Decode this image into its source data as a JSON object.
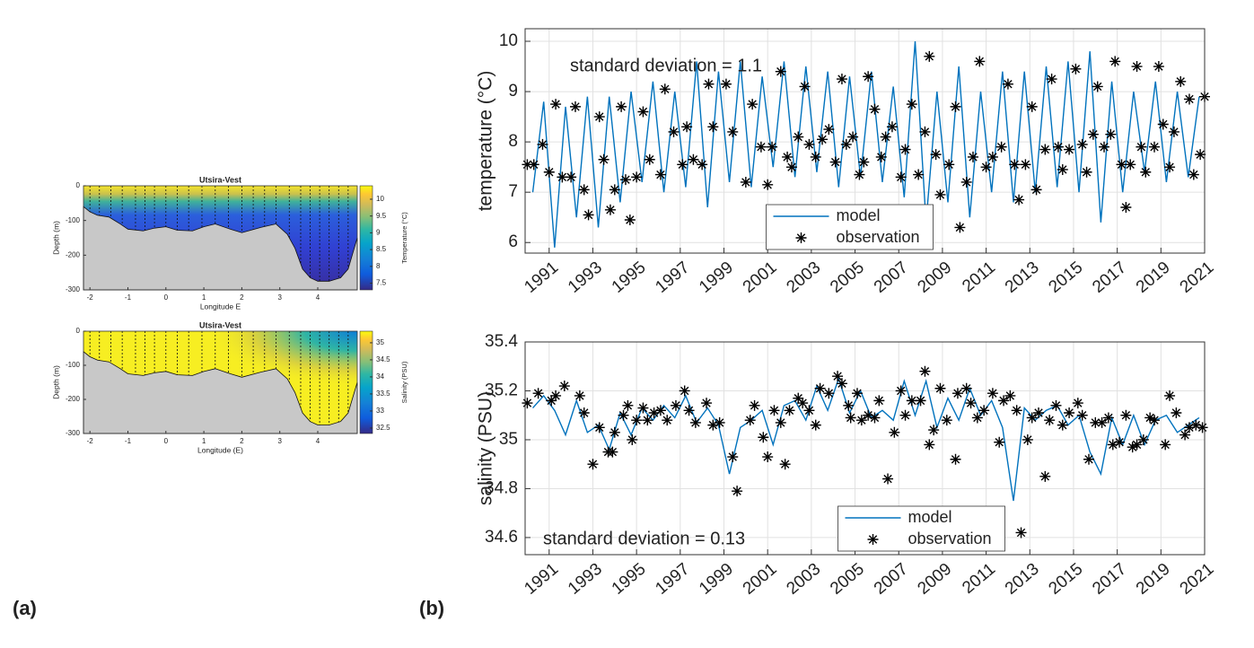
{
  "panel_labels": [
    "(a)",
    "(b)"
  ],
  "chart_data": [
    {
      "type": "section",
      "title": "Utsira-Vest",
      "x_label": "Longitude E",
      "y_label": "Depth (m)",
      "colorbar_label": "Temperature (°C)",
      "xlim": [
        -2.17,
        5.04
      ],
      "xticks": [
        -2,
        -1,
        0,
        1,
        2,
        3,
        4
      ],
      "ylim": [
        -300,
        0
      ],
      "yticks": [
        0,
        -100,
        -200,
        -300
      ],
      "clim": [
        7.3,
        10.4
      ],
      "cticks": [
        10,
        9.5,
        9,
        8.5,
        8,
        7.5
      ],
      "stations": [
        -2.0,
        -1.75,
        -1.45,
        -1.15,
        -0.8,
        -0.55,
        -0.3,
        0.0,
        0.3,
        0.6,
        0.95,
        1.3,
        1.65,
        2.0,
        2.3,
        2.6,
        2.9,
        3.25,
        3.55,
        3.8,
        4.05,
        4.3,
        4.55,
        4.8
      ],
      "x": [
        -2.17,
        -2,
        -1.8,
        -1.5,
        -1.2,
        -1,
        -0.6,
        -0.3,
        0,
        0.3,
        0.7,
        1,
        1.3,
        1.7,
        2,
        2.5,
        2.9,
        3.2,
        3.4,
        3.6,
        3.8,
        4,
        4.3,
        4.6,
        4.8,
        5.04
      ],
      "values": [
        -60,
        -75,
        -85,
        -90,
        -110,
        -125,
        -130,
        -122,
        -118,
        -128,
        -130,
        -118,
        -110,
        -125,
        -135,
        -120,
        -110,
        -140,
        -180,
        -240,
        -265,
        -275,
        -275,
        -265,
        -240,
        -150
      ]
    },
    {
      "type": "section",
      "title": "Utsira-Vest",
      "x_label": "Longitude (E)",
      "y_label": "Depth (m)",
      "colorbar_label": "Salinity (PSU)",
      "xlim": [
        -2.17,
        5.04
      ],
      "xticks": [
        -2,
        -1,
        0,
        1,
        2,
        3,
        4
      ],
      "ylim": [
        -300,
        0
      ],
      "yticks": [
        0,
        -100,
        -200,
        -300
      ],
      "clim": [
        32.34,
        35.34
      ],
      "cticks": [
        35,
        34.5,
        34,
        33.5,
        33,
        32.5
      ],
      "stations": [
        -2.0,
        -1.75,
        -1.45,
        -1.15,
        -0.8,
        -0.55,
        -0.3,
        0.0,
        0.3,
        0.6,
        0.95,
        1.3,
        1.65,
        2.0,
        2.3,
        2.6,
        2.9,
        3.25,
        3.55,
        3.8,
        4.05,
        4.3,
        4.55,
        4.8
      ],
      "x": [
        -2.17,
        -2,
        -1.8,
        -1.5,
        -1.2,
        -1,
        -0.6,
        -0.3,
        0,
        0.3,
        0.7,
        1,
        1.3,
        1.7,
        2,
        2.5,
        2.9,
        3.2,
        3.4,
        3.6,
        3.8,
        4,
        4.3,
        4.6,
        4.8,
        5.04
      ],
      "values": [
        -60,
        -75,
        -85,
        -90,
        -110,
        -125,
        -130,
        -122,
        -118,
        -128,
        -130,
        -118,
        -110,
        -125,
        -135,
        -120,
        -110,
        -140,
        -180,
        -240,
        -265,
        -275,
        -275,
        -265,
        -240,
        -150
      ]
    },
    {
      "type": "timeseries",
      "y_label": "temperature (°C)",
      "annotation": "standard deviation = 1.1",
      "legend": "lower center",
      "grid": true,
      "xlim": [
        1989.9,
        2021
      ],
      "xticks": [
        1991,
        1993,
        1995,
        1997,
        1999,
        2001,
        2003,
        2005,
        2007,
        2009,
        2011,
        2013,
        2015,
        2017,
        2019,
        2021
      ],
      "ylim": [
        5.79,
        10.25
      ],
      "yticks": [
        6,
        7,
        8,
        9,
        10
      ],
      "series": [
        {
          "name": "model",
          "color": "#0072bd",
          "style": "line",
          "x": [
            1990.25,
            1990.75,
            1991.25,
            1991.75,
            1992.25,
            1992.75,
            1993.25,
            1993.75,
            1994.25,
            1994.75,
            1995.25,
            1995.75,
            1996.25,
            1996.75,
            1997.25,
            1997.75,
            1998.25,
            1998.75,
            1999.25,
            1999.75,
            2000.25,
            2000.75,
            2001.25,
            2001.75,
            2002.25,
            2002.75,
            2003.25,
            2003.75,
            2004.25,
            2004.75,
            2005.25,
            2005.75,
            2006.25,
            2006.75,
            2007.25,
            2007.75,
            2008.25,
            2008.75,
            2009.25,
            2009.75,
            2010.25,
            2010.75,
            2011.25,
            2011.75,
            2012.25,
            2012.75,
            2013.25,
            2013.75,
            2014.25,
            2014.75,
            2015.25,
            2015.75,
            2016.25,
            2016.75,
            2017.25,
            2017.75,
            2018.25,
            2018.75,
            2019.25,
            2019.75,
            2020.25,
            2020.75
          ],
          "values": [
            7.0,
            8.8,
            5.9,
            8.7,
            6.5,
            8.9,
            6.3,
            8.9,
            6.8,
            9.0,
            7.2,
            9.2,
            7.0,
            9.0,
            7.1,
            9.6,
            6.7,
            9.4,
            7.2,
            9.6,
            7.1,
            9.3,
            7.5,
            9.6,
            7.3,
            9.5,
            7.4,
            9.4,
            7.1,
            9.3,
            7.3,
            9.4,
            7.2,
            9.1,
            6.9,
            10.0,
            6.4,
            9.0,
            6.8,
            9.5,
            6.5,
            9.0,
            7.0,
            9.4,
            6.8,
            9.4,
            7.0,
            9.5,
            7.1,
            9.6,
            7.0,
            9.8,
            6.4,
            9.2,
            7.0,
            9.0,
            7.4,
            9.2,
            7.2,
            9.0,
            7.3,
            8.9
          ]
        },
        {
          "name": "observation",
          "color": "#000000",
          "style": "asterisk",
          "x": [
            1990.0,
            1990.3,
            1990.7,
            1991.0,
            1991.3,
            1991.6,
            1992.0,
            1992.2,
            1992.6,
            1992.8,
            1993.3,
            1993.5,
            1993.8,
            1994.0,
            1994.3,
            1994.5,
            1994.7,
            1995.0,
            1995.3,
            1995.6,
            1996.1,
            1996.3,
            1996.7,
            1997.1,
            1997.3,
            1997.6,
            1998.0,
            1998.3,
            1998.5,
            1999.1,
            1999.4,
            2000.0,
            2000.3,
            2000.7,
            2001.0,
            2001.2,
            2001.6,
            2001.9,
            2002.1,
            2002.4,
            2002.7,
            2002.9,
            2003.2,
            2003.5,
            2003.8,
            2004.1,
            2004.4,
            2004.6,
            2004.9,
            2005.2,
            2005.4,
            2005.6,
            2005.9,
            2006.2,
            2006.4,
            2006.7,
            2007.1,
            2007.3,
            2007.6,
            2007.9,
            2008.2,
            2008.4,
            2008.7,
            2008.9,
            2009.3,
            2009.6,
            2009.8,
            2010.1,
            2010.4,
            2010.7,
            2011.0,
            2011.3,
            2011.7,
            2012.0,
            2012.3,
            2012.5,
            2012.8,
            2013.1,
            2013.3,
            2013.7,
            2014.0,
            2014.3,
            2014.5,
            2014.8,
            2015.1,
            2015.4,
            2015.6,
            2015.9,
            2016.1,
            2016.4,
            2016.7,
            2016.9,
            2017.2,
            2017.4,
            2017.6,
            2017.9,
            2018.1,
            2018.3,
            2018.7,
            2018.9,
            2019.1,
            2019.4,
            2019.6,
            2019.9,
            2020.3,
            2020.5,
            2020.8,
            2021.0
          ],
          "values": [
            7.55,
            7.55,
            7.95,
            7.4,
            8.75,
            7.3,
            7.3,
            8.7,
            7.05,
            6.55,
            8.5,
            7.65,
            6.65,
            7.05,
            8.7,
            7.25,
            6.45,
            7.3,
            8.6,
            7.65,
            7.35,
            9.05,
            8.2,
            7.55,
            8.3,
            7.65,
            7.55,
            9.15,
            8.3,
            9.15,
            8.2,
            7.2,
            8.75,
            7.9,
            7.15,
            7.9,
            9.4,
            7.7,
            7.5,
            8.1,
            9.1,
            7.95,
            7.7,
            8.05,
            8.25,
            7.6,
            9.25,
            7.95,
            8.1,
            7.35,
            7.6,
            9.3,
            8.65,
            7.7,
            8.1,
            8.3,
            7.3,
            7.85,
            8.75,
            7.35,
            8.2,
            9.7,
            7.75,
            6.95,
            7.55,
            8.7,
            6.3,
            7.2,
            7.7,
            9.6,
            7.5,
            7.7,
            7.9,
            9.15,
            7.55,
            6.85,
            7.55,
            8.7,
            7.05,
            7.85,
            9.25,
            7.9,
            7.45,
            7.85,
            9.45,
            7.95,
            7.4,
            8.15,
            9.1,
            7.9,
            8.15,
            9.6,
            7.55,
            6.7,
            7.55,
            9.5,
            7.9,
            7.4,
            7.9,
            9.5,
            8.35,
            7.5,
            8.2,
            9.2,
            8.85,
            7.35,
            7.75,
            8.9
          ]
        }
      ]
    },
    {
      "type": "timeseries",
      "y_label": "salinity (PSU)",
      "annotation": "standard deviation = 0.13",
      "legend": "lower center",
      "grid": true,
      "xlim": [
        1989.9,
        2021
      ],
      "xticks": [
        1991,
        1993,
        1995,
        1997,
        1999,
        2001,
        2003,
        2005,
        2007,
        2009,
        2011,
        2013,
        2015,
        2017,
        2019,
        2021
      ],
      "ylim": [
        34.53,
        35.4
      ],
      "yticks": [
        34.6,
        34.8,
        35,
        35.2,
        35.4
      ],
      "series": [
        {
          "name": "model",
          "color": "#0072bd",
          "style": "line",
          "x": [
            1990.25,
            1990.75,
            1991.25,
            1991.75,
            1992.25,
            1992.75,
            1993.25,
            1993.75,
            1994.25,
            1994.75,
            1995.25,
            1995.75,
            1996.25,
            1996.75,
            1997.25,
            1997.75,
            1998.25,
            1998.75,
            1999.25,
            1999.75,
            2000.25,
            2000.75,
            2001.25,
            2001.75,
            2002.25,
            2002.75,
            2003.25,
            2003.75,
            2004.25,
            2004.75,
            2005.25,
            2005.75,
            2006.25,
            2006.75,
            2007.25,
            2007.75,
            2008.25,
            2008.75,
            2009.25,
            2009.75,
            2010.25,
            2010.75,
            2011.25,
            2011.75,
            2012.25,
            2012.75,
            2013.25,
            2013.75,
            2014.25,
            2014.75,
            2015.25,
            2015.75,
            2016.25,
            2016.75,
            2017.25,
            2017.75,
            2018.25,
            2018.75,
            2019.25,
            2019.75,
            2020.25,
            2020.75
          ],
          "values": [
            35.13,
            35.18,
            35.12,
            35.02,
            35.16,
            35.03,
            35.06,
            34.96,
            35.11,
            35.02,
            35.13,
            35.08,
            35.14,
            35.09,
            35.18,
            35.07,
            35.13,
            35.06,
            34.86,
            35.05,
            35.08,
            35.12,
            34.98,
            35.14,
            35.16,
            35.08,
            35.22,
            35.12,
            35.25,
            35.11,
            35.2,
            35.09,
            35.12,
            35.08,
            35.24,
            35.1,
            35.24,
            35.05,
            35.17,
            35.08,
            35.21,
            35.1,
            35.16,
            35.05,
            34.75,
            35.13,
            35.08,
            35.12,
            35.14,
            35.06,
            35.1,
            34.95,
            34.86,
            35.09,
            34.98,
            35.1,
            34.98,
            35.08,
            35.1,
            35.03,
            35.06,
            35.09
          ]
        },
        {
          "name": "observation",
          "color": "#000000",
          "style": "asterisk",
          "x": [
            1990.0,
            1990.5,
            1991.1,
            1991.3,
            1991.7,
            1992.4,
            1992.6,
            1993.0,
            1993.3,
            1993.7,
            1993.9,
            1994.0,
            1994.4,
            1994.6,
            1994.8,
            1995.0,
            1995.3,
            1995.5,
            1995.8,
            1996.1,
            1996.4,
            1996.8,
            1997.2,
            1997.4,
            1997.7,
            1998.2,
            1998.5,
            1998.8,
            1999.4,
            1999.6,
            2000.2,
            2000.4,
            2000.8,
            2001.0,
            2001.3,
            2001.6,
            2001.8,
            2002.0,
            2002.4,
            2002.6,
            2002.9,
            2003.2,
            2003.4,
            2003.8,
            2004.2,
            2004.4,
            2004.7,
            2004.8,
            2005.1,
            2005.3,
            2005.6,
            2005.9,
            2006.1,
            2006.5,
            2006.8,
            2007.1,
            2007.3,
            2007.6,
            2008.0,
            2008.2,
            2008.4,
            2008.6,
            2008.9,
            2009.2,
            2009.6,
            2009.7,
            2010.1,
            2010.3,
            2010.6,
            2010.9,
            2011.3,
            2011.6,
            2011.8,
            2012.1,
            2012.4,
            2012.6,
            2012.9,
            2013.1,
            2013.4,
            2013.7,
            2013.9,
            2014.2,
            2014.5,
            2014.8,
            2015.2,
            2015.4,
            2015.7,
            2016.0,
            2016.3,
            2016.6,
            2016.8,
            2017.1,
            2017.4,
            2017.7,
            2017.9,
            2018.2,
            2018.5,
            2018.7,
            2019.2,
            2019.4,
            2019.7,
            2020.1,
            2020.3,
            2020.6,
            2020.9
          ],
          "values": [
            35.15,
            35.19,
            35.16,
            35.18,
            35.22,
            35.18,
            35.11,
            34.9,
            35.05,
            34.95,
            34.95,
            35.03,
            35.1,
            35.14,
            35.0,
            35.08,
            35.13,
            35.08,
            35.11,
            35.12,
            35.08,
            35.14,
            35.2,
            35.12,
            35.07,
            35.15,
            35.06,
            35.07,
            34.93,
            34.79,
            35.08,
            35.14,
            35.01,
            34.93,
            35.12,
            35.07,
            34.9,
            35.12,
            35.17,
            35.15,
            35.12,
            35.06,
            35.21,
            35.19,
            35.26,
            35.23,
            35.14,
            35.09,
            35.19,
            35.08,
            35.1,
            35.09,
            35.16,
            34.84,
            35.03,
            35.2,
            35.1,
            35.16,
            35.16,
            35.28,
            34.98,
            35.04,
            35.21,
            35.08,
            34.92,
            35.19,
            35.21,
            35.15,
            35.09,
            35.12,
            35.19,
            34.99,
            35.16,
            35.18,
            35.12,
            34.62,
            35.0,
            35.09,
            35.11,
            34.85,
            35.08,
            35.14,
            35.06,
            35.11,
            35.15,
            35.1,
            34.92,
            35.07,
            35.07,
            35.09,
            34.98,
            34.99,
            35.1,
            34.97,
            34.98,
            35.0,
            35.09,
            35.08,
            34.98,
            35.18,
            35.11,
            35.02,
            35.05,
            35.06,
            35.05
          ]
        }
      ]
    }
  ]
}
